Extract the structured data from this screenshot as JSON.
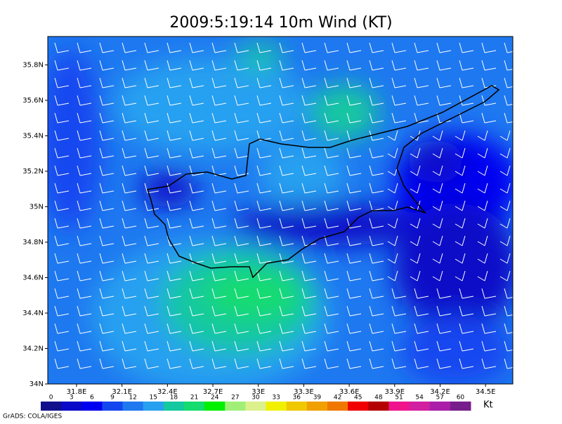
{
  "title": "2009:5:19:14 10m Wind (KT)",
  "map": {
    "ylim": [
      34,
      35.96
    ],
    "xlim": [
      31.61,
      34.68
    ],
    "lat_ticks": [
      {
        "value": 34,
        "label": "34N"
      },
      {
        "value": 34.2,
        "label": "34.2N"
      },
      {
        "value": 34.4,
        "label": "34.4N"
      },
      {
        "value": 34.6,
        "label": "34.6N"
      },
      {
        "value": 34.8,
        "label": "34.8N"
      },
      {
        "value": 35,
        "label": "35N"
      },
      {
        "value": 35.2,
        "label": "35.2N"
      },
      {
        "value": 35.4,
        "label": "35.4N"
      },
      {
        "value": 35.6,
        "label": "35.6N"
      },
      {
        "value": 35.8,
        "label": "35.8N"
      }
    ],
    "lon_ticks": [
      {
        "value": 31.8,
        "label": "31.8E"
      },
      {
        "value": 32.1,
        "label": "32.1E"
      },
      {
        "value": 32.4,
        "label": "32.4E"
      },
      {
        "value": 32.7,
        "label": "32.7E"
      },
      {
        "value": 33,
        "label": "33E"
      },
      {
        "value": 33.3,
        "label": "33.3E"
      },
      {
        "value": 33.6,
        "label": "33.6E"
      },
      {
        "value": 33.9,
        "label": "33.9E"
      },
      {
        "value": 34.2,
        "label": "34.2E"
      },
      {
        "value": 34.5,
        "label": "34.5E"
      }
    ]
  },
  "colorbar": {
    "levels": [
      0,
      3,
      6,
      9,
      12,
      15,
      18,
      21,
      24,
      27,
      30,
      33,
      36,
      39,
      42,
      45,
      48,
      51,
      54,
      57,
      60
    ],
    "colors": [
      "#10108c",
      "#0a0ac8",
      "#0000f0",
      "#1446f0",
      "#1e78f0",
      "#28a0f0",
      "#14c8a0",
      "#14dc6e",
      "#00f000",
      "#a0f078",
      "#dcf08c",
      "#f0f000",
      "#f0c800",
      "#f0a000",
      "#f07800",
      "#f00000",
      "#b40000",
      "#f0148c",
      "#d21ea0",
      "#aa1eaa",
      "#781e8c"
    ],
    "unit": "Kt"
  },
  "credit": "GrADS: COLA/IGES"
}
